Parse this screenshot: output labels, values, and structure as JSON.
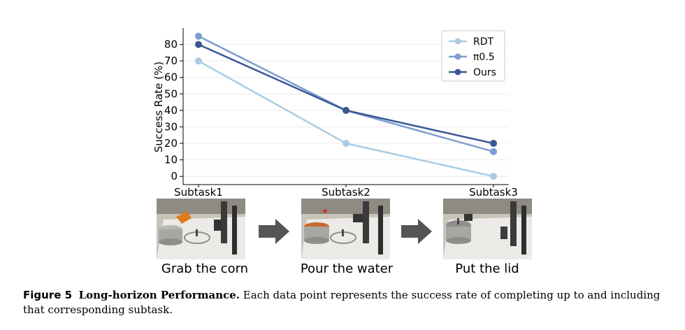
{
  "chart_data": {
    "type": "line",
    "categories": [
      "Subtask1",
      "Subtask2",
      "Subtask3"
    ],
    "ylabel": "Success Rate (%)",
    "yticks": [
      0,
      10,
      20,
      30,
      40,
      50,
      60,
      70,
      80
    ],
    "ylim": [
      -5,
      90
    ],
    "grid": true,
    "legend_position": "top-right",
    "series": [
      {
        "name": "RDT",
        "values": [
          70,
          20,
          0
        ],
        "color": "#a9cce3"
      },
      {
        "name": "π0.5",
        "values": [
          85,
          40,
          15
        ],
        "color": "#7b9fd0"
      },
      {
        "name": "Ours",
        "values": [
          80,
          40,
          20
        ],
        "color": "#3a5896"
      }
    ]
  },
  "steps": [
    {
      "caption": "Grab the corn"
    },
    {
      "caption": "Pour the water"
    },
    {
      "caption": "Put the lid"
    }
  ],
  "figure": {
    "label": "Figure 5",
    "title": "Long-horizon Performance.",
    "text": "Each data point represents the success rate of completing up to and including that corresponding subtask."
  }
}
